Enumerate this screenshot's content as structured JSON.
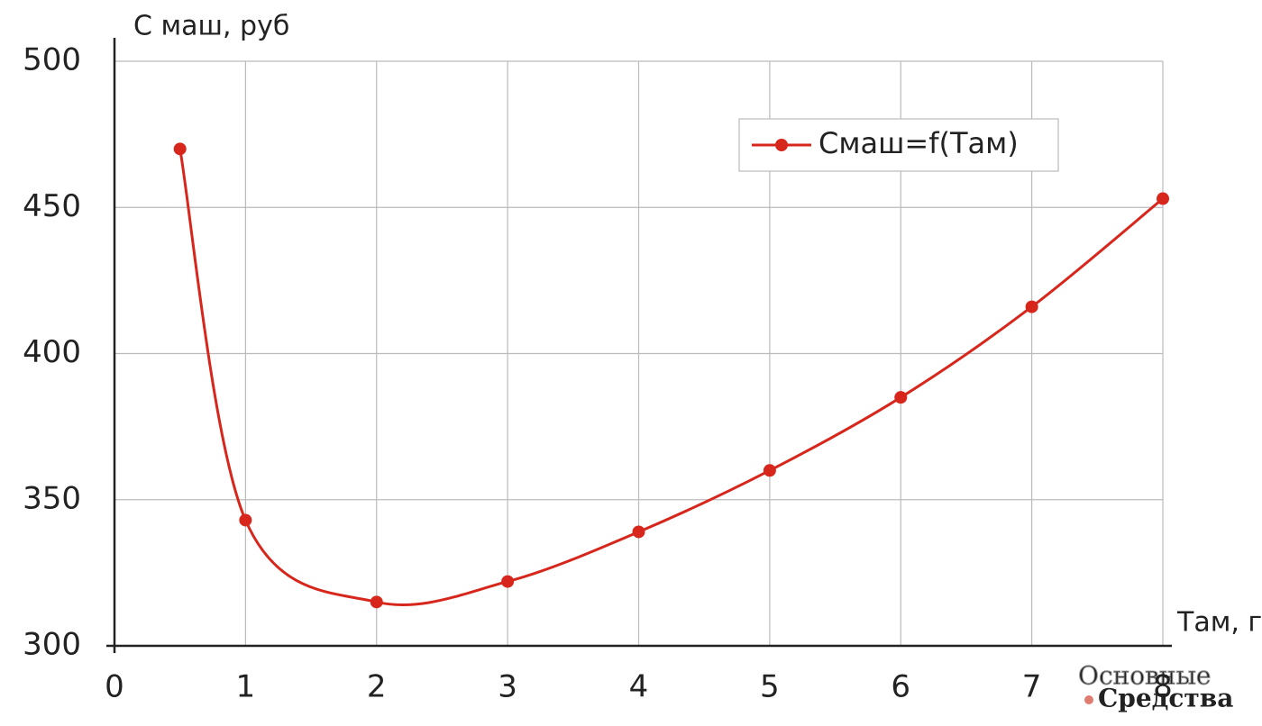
{
  "chart_data": {
    "type": "line",
    "y_label": "C маш, руб",
    "x_label": "Tам, г",
    "x": [
      0.5,
      1,
      2,
      3,
      4,
      5,
      6,
      7,
      8
    ],
    "series": [
      {
        "name": "Cмаш=f(Tам)",
        "color": "#d7261c",
        "values": [
          470,
          343,
          315,
          322,
          339,
          360,
          385,
          416,
          453
        ]
      }
    ],
    "xlim": [
      0,
      8
    ],
    "xticks": [
      0,
      1,
      2,
      3,
      4,
      5,
      6,
      7,
      8
    ],
    "ylim": [
      300,
      500
    ],
    "yticks": [
      300,
      350,
      400,
      450,
      500
    ],
    "grid": true,
    "smooth": true,
    "legend": "upper right"
  },
  "watermark": [
    "Основные",
    "Средства"
  ]
}
